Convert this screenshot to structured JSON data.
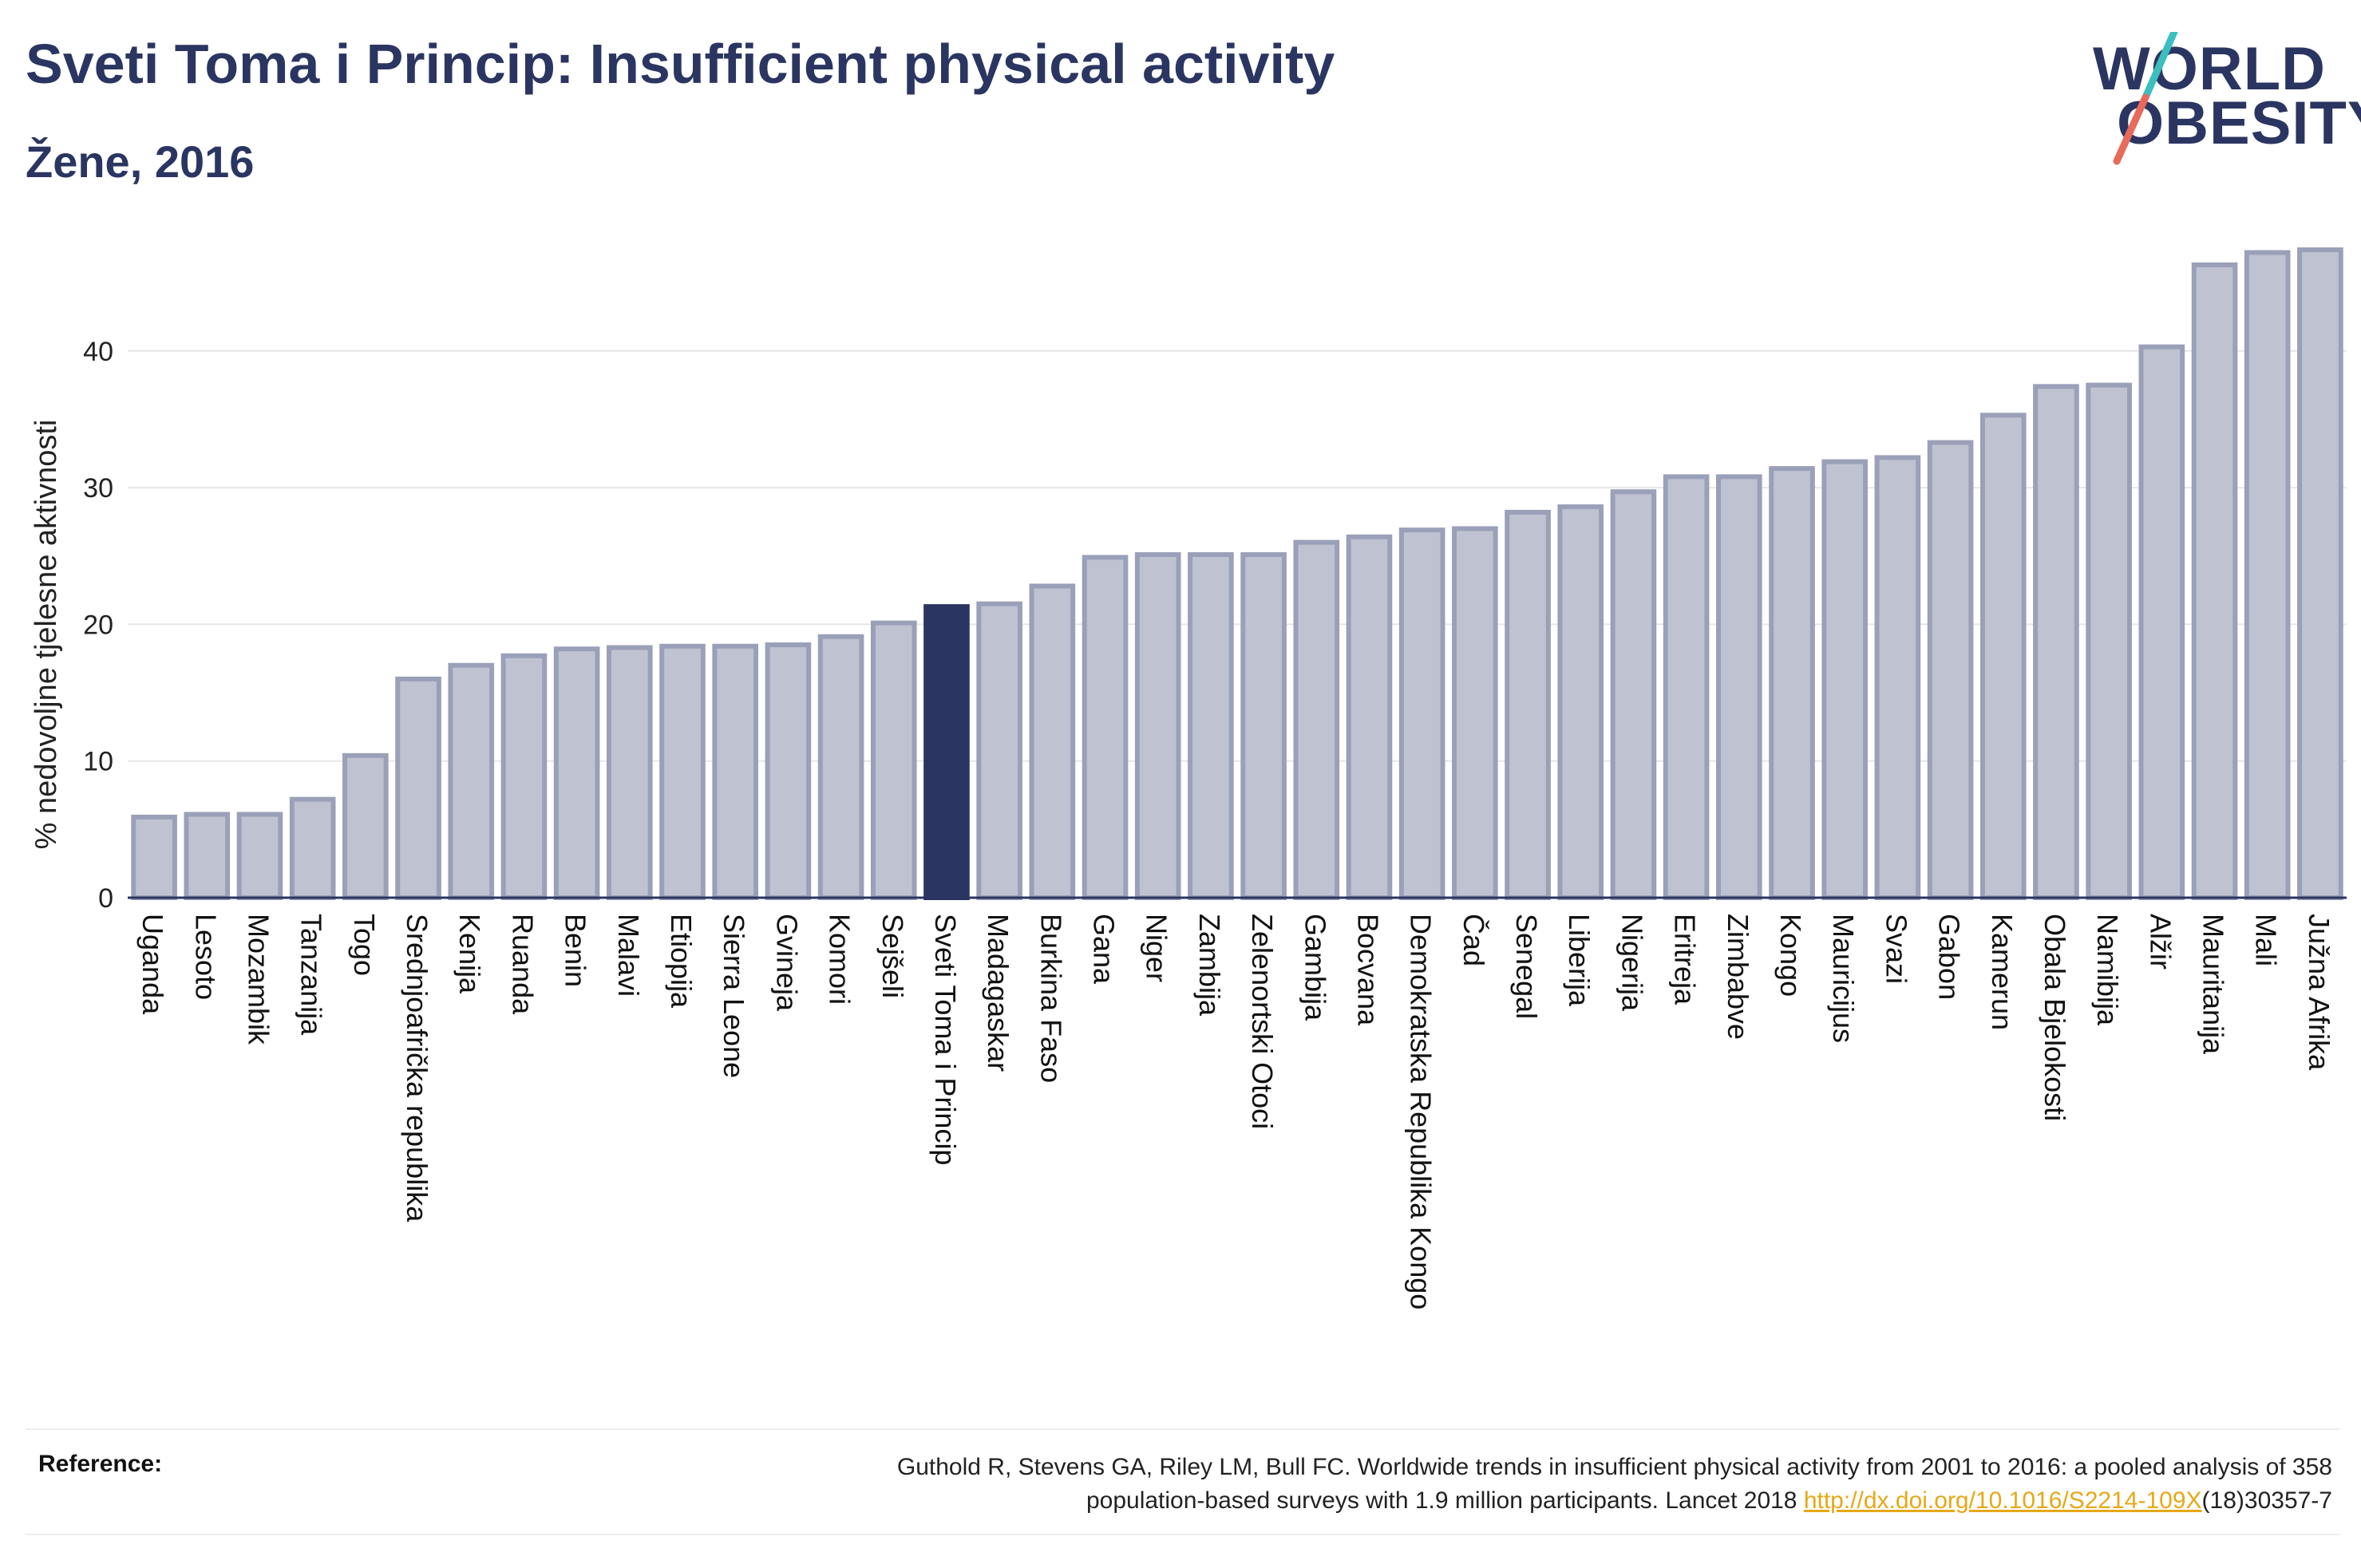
{
  "header": {
    "title": "Sveti Toma i Princip: Insufficient physical activity",
    "subtitle": "Žene, 2016"
  },
  "logo": {
    "line1": "WORLD",
    "line2": "OBESITY"
  },
  "reference": {
    "label": "Reference:",
    "text1": "Guthold R, Stevens GA, Riley LM, Bull FC. Worldwide trends in insufficient physical activity from 2001 to 2016: a pooled analysis of 358",
    "text2": "population-based surveys with 1.9 million participants. Lancet 2018 ",
    "link": "http://dx.doi.org/10.1016/S2214-109X",
    "text3": "(18)30357-7"
  },
  "colors": {
    "bar": "#bfc3d1",
    "bar_stroke": "#9aa0b8",
    "highlight": "#2b3561",
    "text": "#2b3561",
    "link": "#e6a817",
    "logo_slash_top": "#3bbfbf",
    "logo_slash_bottom": "#e86a5a"
  },
  "chart_data": {
    "type": "bar",
    "ylabel": "% nedovoljne tjelesne aktivnosti",
    "xlabel": "",
    "ylim": [
      0,
      48
    ],
    "yticks": [
      0,
      10,
      20,
      30,
      40
    ],
    "grid": true,
    "highlight": "Sveti Toma i Princip",
    "categories": [
      "Uganda",
      "Lesoto",
      "Mozambik",
      "Tanzanija",
      "Togo",
      "Srednjoafrička republika",
      "Kenija",
      "Ruanda",
      "Benin",
      "Malavi",
      "Etiopija",
      "Sierra Leone",
      "Gvineja",
      "Komori",
      "Sejšeli",
      "Sveti Toma i Princip",
      "Madagaskar",
      "Burkina Faso",
      "Gana",
      "Niger",
      "Zambija",
      "Zelenortski Otoci",
      "Gambija",
      "Bocvana",
      "Demokratska Republika Kongo",
      "Čad",
      "Senegal",
      "Liberija",
      "Nigerija",
      "Eritreja",
      "Zimbabve",
      "Kongo",
      "Mauricijus",
      "Svazi",
      "Gabon",
      "Kamerun",
      "Obala Bjelokosti",
      "Namibija",
      "Alžir",
      "Mauritanija",
      "Mali",
      "Južna Afrika"
    ],
    "values": [
      5.9,
      6.1,
      6.1,
      7.2,
      10.4,
      16.0,
      17.0,
      17.7,
      18.2,
      18.3,
      18.4,
      18.4,
      18.5,
      19.1,
      20.1,
      21.3,
      21.5,
      22.8,
      24.9,
      25.1,
      25.1,
      25.1,
      26.0,
      26.4,
      26.9,
      27.0,
      28.2,
      28.6,
      29.7,
      30.8,
      30.8,
      31.4,
      31.9,
      32.2,
      33.3,
      35.3,
      37.4,
      37.5,
      40.3,
      46.3,
      47.2,
      47.4
    ]
  }
}
